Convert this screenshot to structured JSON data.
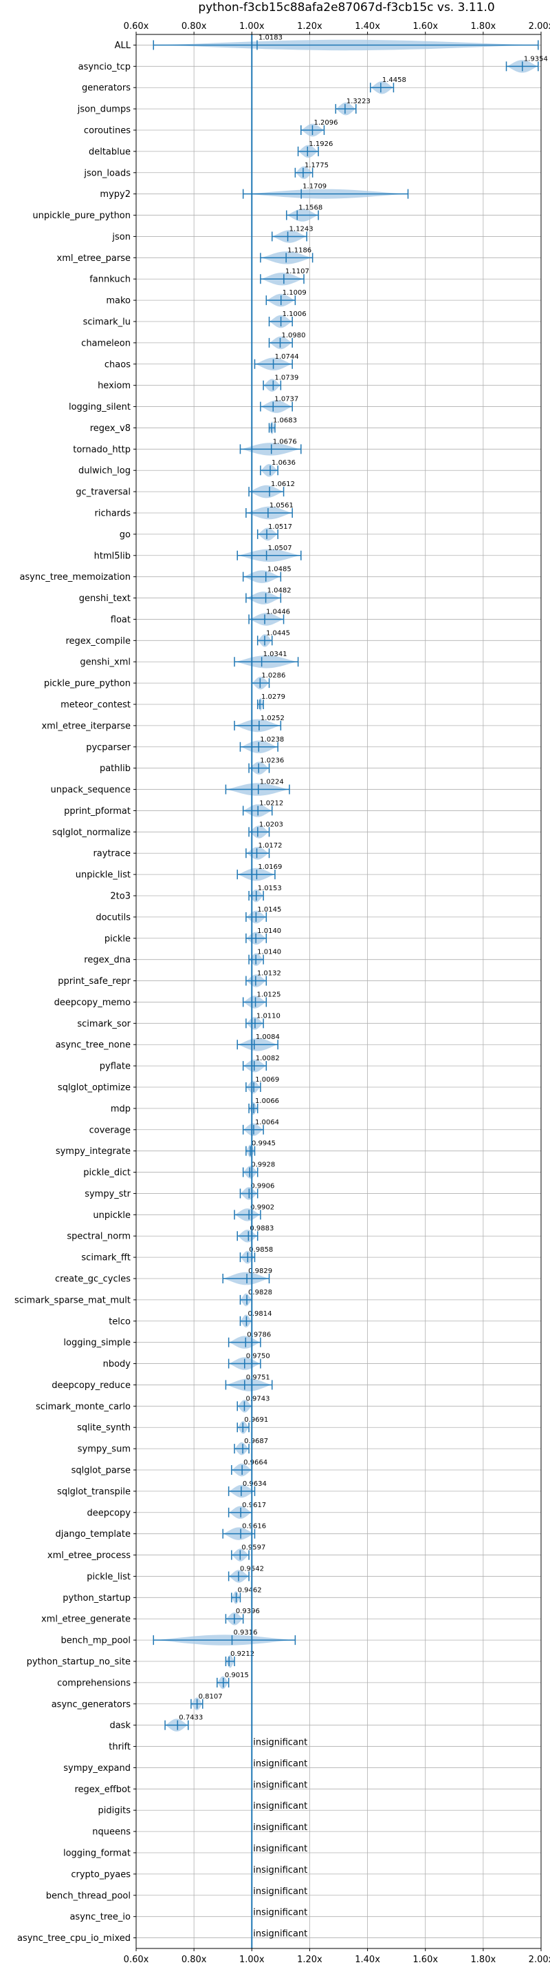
{
  "chart_data": {
    "type": "violin",
    "title": "python-f3cb15c88afa2e87067d-f3cb15c vs. 3.11.0",
    "xlim": [
      0.6,
      2.0
    ],
    "xticks": [
      0.6,
      0.8,
      1.0,
      1.2,
      1.4,
      1.6,
      1.8,
      2.0
    ],
    "xtick_labels": [
      "0.60x",
      "0.80x",
      "1.00x",
      "1.20x",
      "1.40x",
      "1.60x",
      "1.80x",
      "2.00x"
    ],
    "reference_line": 1.0,
    "grid": true,
    "accent_color": "#1f77b4",
    "violin_color": "#a6c8e6",
    "insignificant_text": "insignificant",
    "benchmarks": [
      {
        "name": "ALL",
        "value": 1.0183,
        "label": "1.0183",
        "min": 0.66,
        "max": 1.99,
        "width": 0.5
      },
      {
        "name": "asyncio_tcp",
        "value": 1.9354,
        "label": "1.9354",
        "min": 1.88,
        "max": 1.99,
        "width": 0.6
      },
      {
        "name": "generators",
        "value": 1.4458,
        "label": "1.4458",
        "min": 1.41,
        "max": 1.49,
        "width": 0.6
      },
      {
        "name": "json_dumps",
        "value": 1.3223,
        "label": "1.3223",
        "min": 1.29,
        "max": 1.36,
        "width": 0.6
      },
      {
        "name": "coroutines",
        "value": 1.2096,
        "label": "1.2096",
        "min": 1.17,
        "max": 1.25,
        "width": 0.6
      },
      {
        "name": "deltablue",
        "value": 1.1926,
        "label": "1.1926",
        "min": 1.16,
        "max": 1.23,
        "width": 0.6
      },
      {
        "name": "json_loads",
        "value": 1.1775,
        "label": "1.1775",
        "min": 1.15,
        "max": 1.21,
        "width": 0.6
      },
      {
        "name": "mypy2",
        "value": 1.1709,
        "label": "1.1709",
        "min": 0.97,
        "max": 1.54,
        "width": 0.45
      },
      {
        "name": "unpickle_pure_python",
        "value": 1.1568,
        "label": "1.1568",
        "min": 1.12,
        "max": 1.23,
        "width": 0.6
      },
      {
        "name": "json",
        "value": 1.1243,
        "label": "1.1243",
        "min": 1.07,
        "max": 1.19,
        "width": 0.6
      },
      {
        "name": "xml_etree_parse",
        "value": 1.1186,
        "label": "1.1186",
        "min": 1.03,
        "max": 1.21,
        "width": 0.6
      },
      {
        "name": "fannkuch",
        "value": 1.1107,
        "label": "1.1107",
        "min": 1.03,
        "max": 1.18,
        "width": 0.6
      },
      {
        "name": "mako",
        "value": 1.1009,
        "label": "1.1009",
        "min": 1.05,
        "max": 1.15,
        "width": 0.6
      },
      {
        "name": "scimark_lu",
        "value": 1.1006,
        "label": "1.1006",
        "min": 1.06,
        "max": 1.14,
        "width": 0.6
      },
      {
        "name": "chameleon",
        "value": 1.098,
        "label": "1.0980",
        "min": 1.06,
        "max": 1.14,
        "width": 0.6
      },
      {
        "name": "chaos",
        "value": 1.0744,
        "label": "1.0744",
        "min": 1.01,
        "max": 1.14,
        "width": 0.6
      },
      {
        "name": "hexiom",
        "value": 1.0739,
        "label": "1.0739",
        "min": 1.04,
        "max": 1.1,
        "width": 0.6
      },
      {
        "name": "logging_silent",
        "value": 1.0737,
        "label": "1.0737",
        "min": 1.03,
        "max": 1.14,
        "width": 0.6
      },
      {
        "name": "regex_v8",
        "value": 1.0683,
        "label": "1.0683",
        "min": 1.06,
        "max": 1.08,
        "width": 0.6
      },
      {
        "name": "tornado_http",
        "value": 1.0676,
        "label": "1.0676",
        "min": 0.96,
        "max": 1.17,
        "width": 0.6
      },
      {
        "name": "dulwich_log",
        "value": 1.0636,
        "label": "1.0636",
        "min": 1.03,
        "max": 1.09,
        "width": 0.6
      },
      {
        "name": "gc_traversal",
        "value": 1.0612,
        "label": "1.0612",
        "min": 0.99,
        "max": 1.11,
        "width": 0.6
      },
      {
        "name": "richards",
        "value": 1.0561,
        "label": "1.0561",
        "min": 0.98,
        "max": 1.14,
        "width": 0.6
      },
      {
        "name": "go",
        "value": 1.0517,
        "label": "1.0517",
        "min": 1.02,
        "max": 1.09,
        "width": 0.6
      },
      {
        "name": "html5lib",
        "value": 1.0507,
        "label": "1.0507",
        "min": 0.95,
        "max": 1.17,
        "width": 0.6
      },
      {
        "name": "async_tree_memoization",
        "value": 1.0485,
        "label": "1.0485",
        "min": 0.97,
        "max": 1.1,
        "width": 0.6
      },
      {
        "name": "genshi_text",
        "value": 1.0482,
        "label": "1.0482",
        "min": 0.98,
        "max": 1.1,
        "width": 0.6
      },
      {
        "name": "float",
        "value": 1.0446,
        "label": "1.0446",
        "min": 0.99,
        "max": 1.11,
        "width": 0.6
      },
      {
        "name": "regex_compile",
        "value": 1.0445,
        "label": "1.0445",
        "min": 1.02,
        "max": 1.07,
        "width": 0.6
      },
      {
        "name": "genshi_xml",
        "value": 1.0341,
        "label": "1.0341",
        "min": 0.94,
        "max": 1.16,
        "width": 0.6
      },
      {
        "name": "pickle_pure_python",
        "value": 1.0286,
        "label": "1.0286",
        "min": 1.0,
        "max": 1.06,
        "width": 0.6
      },
      {
        "name": "meteor_contest",
        "value": 1.0279,
        "label": "1.0279",
        "min": 1.02,
        "max": 1.04,
        "width": 0.6
      },
      {
        "name": "xml_etree_iterparse",
        "value": 1.0252,
        "label": "1.0252",
        "min": 0.94,
        "max": 1.1,
        "width": 0.6
      },
      {
        "name": "pycparser",
        "value": 1.0238,
        "label": "1.0238",
        "min": 0.96,
        "max": 1.09,
        "width": 0.6
      },
      {
        "name": "pathlib",
        "value": 1.0236,
        "label": "1.0236",
        "min": 0.99,
        "max": 1.06,
        "width": 0.6
      },
      {
        "name": "unpack_sequence",
        "value": 1.0224,
        "label": "1.0224",
        "min": 0.91,
        "max": 1.13,
        "width": 0.6
      },
      {
        "name": "pprint_pformat",
        "value": 1.0212,
        "label": "1.0212",
        "min": 0.97,
        "max": 1.07,
        "width": 0.6
      },
      {
        "name": "sqlglot_normalize",
        "value": 1.0203,
        "label": "1.0203",
        "min": 0.99,
        "max": 1.06,
        "width": 0.6
      },
      {
        "name": "raytrace",
        "value": 1.0172,
        "label": "1.0172",
        "min": 0.98,
        "max": 1.06,
        "width": 0.6
      },
      {
        "name": "unpickle_list",
        "value": 1.0169,
        "label": "1.0169",
        "min": 0.95,
        "max": 1.08,
        "width": 0.6
      },
      {
        "name": "2to3",
        "value": 1.0153,
        "label": "1.0153",
        "min": 0.99,
        "max": 1.04,
        "width": 0.6
      },
      {
        "name": "docutils",
        "value": 1.0145,
        "label": "1.0145",
        "min": 0.98,
        "max": 1.05,
        "width": 0.6
      },
      {
        "name": "pickle",
        "value": 1.014,
        "label": "1.0140",
        "min": 0.98,
        "max": 1.05,
        "width": 0.6
      },
      {
        "name": "regex_dna",
        "value": 1.014,
        "label": "1.0140",
        "min": 0.99,
        "max": 1.04,
        "width": 0.6
      },
      {
        "name": "pprint_safe_repr",
        "value": 1.0132,
        "label": "1.0132",
        "min": 0.98,
        "max": 1.05,
        "width": 0.6
      },
      {
        "name": "deepcopy_memo",
        "value": 1.0125,
        "label": "1.0125",
        "min": 0.97,
        "max": 1.05,
        "width": 0.6
      },
      {
        "name": "scimark_sor",
        "value": 1.011,
        "label": "1.0110",
        "min": 0.98,
        "max": 1.04,
        "width": 0.6
      },
      {
        "name": "async_tree_none",
        "value": 1.0084,
        "label": "1.0084",
        "min": 0.95,
        "max": 1.09,
        "width": 0.6
      },
      {
        "name": "pyflate",
        "value": 1.0082,
        "label": "1.0082",
        "min": 0.97,
        "max": 1.05,
        "width": 0.6
      },
      {
        "name": "sqlglot_optimize",
        "value": 1.0069,
        "label": "1.0069",
        "min": 0.98,
        "max": 1.03,
        "width": 0.6
      },
      {
        "name": "mdp",
        "value": 1.0066,
        "label": "1.0066",
        "min": 0.99,
        "max": 1.02,
        "width": 0.6
      },
      {
        "name": "coverage",
        "value": 1.0064,
        "label": "1.0064",
        "min": 0.97,
        "max": 1.04,
        "width": 0.6
      },
      {
        "name": "sympy_integrate",
        "value": 0.9945,
        "label": "0.9945",
        "min": 0.98,
        "max": 1.01,
        "width": 0.6
      },
      {
        "name": "pickle_dict",
        "value": 0.9928,
        "label": "0.9928",
        "min": 0.97,
        "max": 1.02,
        "width": 0.6
      },
      {
        "name": "sympy_str",
        "value": 0.9906,
        "label": "0.9906",
        "min": 0.96,
        "max": 1.02,
        "width": 0.6
      },
      {
        "name": "unpickle",
        "value": 0.9902,
        "label": "0.9902",
        "min": 0.94,
        "max": 1.03,
        "width": 0.6
      },
      {
        "name": "spectral_norm",
        "value": 0.9883,
        "label": "0.9883",
        "min": 0.95,
        "max": 1.02,
        "width": 0.6
      },
      {
        "name": "scimark_fft",
        "value": 0.9858,
        "label": "0.9858",
        "min": 0.96,
        "max": 1.01,
        "width": 0.6
      },
      {
        "name": "create_gc_cycles",
        "value": 0.9829,
        "label": "0.9829",
        "min": 0.9,
        "max": 1.06,
        "width": 0.6
      },
      {
        "name": "scimark_sparse_mat_mult",
        "value": 0.9828,
        "label": "0.9828",
        "min": 0.96,
        "max": 1.0,
        "width": 0.6
      },
      {
        "name": "telco",
        "value": 0.9814,
        "label": "0.9814",
        "min": 0.96,
        "max": 1.0,
        "width": 0.6
      },
      {
        "name": "logging_simple",
        "value": 0.9786,
        "label": "0.9786",
        "min": 0.92,
        "max": 1.03,
        "width": 0.6
      },
      {
        "name": "nbody",
        "value": 0.975,
        "label": "0.9750",
        "min": 0.92,
        "max": 1.03,
        "width": 0.6
      },
      {
        "name": "deepcopy_reduce",
        "value": 0.9751,
        "label": "0.9751",
        "min": 0.91,
        "max": 1.07,
        "width": 0.6
      },
      {
        "name": "scimark_monte_carlo",
        "value": 0.9743,
        "label": "0.9743",
        "min": 0.95,
        "max": 1.0,
        "width": 0.6
      },
      {
        "name": "sqlite_synth",
        "value": 0.9691,
        "label": "0.9691",
        "min": 0.95,
        "max": 0.99,
        "width": 0.6
      },
      {
        "name": "sympy_sum",
        "value": 0.9687,
        "label": "0.9687",
        "min": 0.94,
        "max": 0.99,
        "width": 0.6
      },
      {
        "name": "sqlglot_parse",
        "value": 0.9664,
        "label": "0.9664",
        "min": 0.93,
        "max": 1.0,
        "width": 0.6
      },
      {
        "name": "sqlglot_transpile",
        "value": 0.9634,
        "label": "0.9634",
        "min": 0.92,
        "max": 1.01,
        "width": 0.6
      },
      {
        "name": "deepcopy",
        "value": 0.9617,
        "label": "0.9617",
        "min": 0.92,
        "max": 1.0,
        "width": 0.6
      },
      {
        "name": "django_template",
        "value": 0.9616,
        "label": "0.9616",
        "min": 0.9,
        "max": 1.01,
        "width": 0.6
      },
      {
        "name": "xml_etree_process",
        "value": 0.9597,
        "label": "0.9597",
        "min": 0.93,
        "max": 0.99,
        "width": 0.6
      },
      {
        "name": "pickle_list",
        "value": 0.9542,
        "label": "0.9542",
        "min": 0.92,
        "max": 0.99,
        "width": 0.6
      },
      {
        "name": "python_startup",
        "value": 0.9462,
        "label": "0.9462",
        "min": 0.93,
        "max": 0.96,
        "width": 0.6
      },
      {
        "name": "xml_etree_generate",
        "value": 0.9396,
        "label": "0.9396",
        "min": 0.91,
        "max": 0.97,
        "width": 0.6
      },
      {
        "name": "bench_mp_pool",
        "value": 0.9316,
        "label": "0.9316",
        "min": 0.66,
        "max": 1.15,
        "width": 0.5
      },
      {
        "name": "python_startup_no_site",
        "value": 0.9212,
        "label": "0.9212",
        "min": 0.91,
        "max": 0.94,
        "width": 0.6
      },
      {
        "name": "comprehensions",
        "value": 0.9015,
        "label": "0.9015",
        "min": 0.88,
        "max": 0.92,
        "width": 0.6
      },
      {
        "name": "async_generators",
        "value": 0.8107,
        "label": "0.8107",
        "min": 0.79,
        "max": 0.83,
        "width": 0.6
      },
      {
        "name": "dask",
        "value": 0.7433,
        "label": "0.7433",
        "min": 0.7,
        "max": 0.78,
        "width": 0.6
      },
      {
        "name": "thrift",
        "value": null
      },
      {
        "name": "sympy_expand",
        "value": null
      },
      {
        "name": "regex_effbot",
        "value": null
      },
      {
        "name": "pidigits",
        "value": null
      },
      {
        "name": "nqueens",
        "value": null
      },
      {
        "name": "logging_format",
        "value": null
      },
      {
        "name": "crypto_pyaes",
        "value": null
      },
      {
        "name": "bench_thread_pool",
        "value": null
      },
      {
        "name": "async_tree_io",
        "value": null
      },
      {
        "name": "async_tree_cpu_io_mixed",
        "value": null
      }
    ]
  }
}
